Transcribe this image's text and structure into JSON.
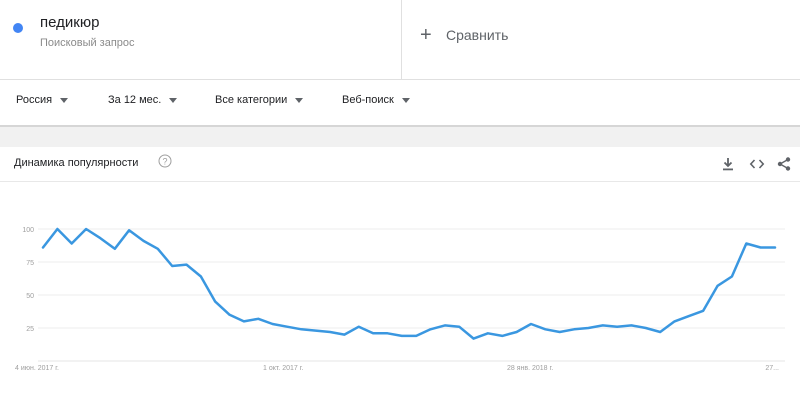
{
  "term": {
    "name": "педикюр",
    "subtitle": "Поисковый запрос",
    "color": "#4285f4"
  },
  "compare": {
    "label": "Сравнить",
    "icon": "plus-icon"
  },
  "filters": [
    {
      "label": "Россия"
    },
    {
      "label": "За 12 мес."
    },
    {
      "label": "Все категории"
    },
    {
      "label": "Веб-поиск"
    }
  ],
  "card": {
    "title": "Динамика популярности",
    "icons": [
      "help-icon",
      "download-icon",
      "embed-icon",
      "share-icon"
    ]
  },
  "chart_data": {
    "type": "line",
    "line_color": "#3a97e0",
    "ylim": [
      0,
      100
    ],
    "y_ticks": [
      "100",
      "75",
      "50",
      "25"
    ],
    "x_tick_labels": [
      {
        "label": "4 июн. 2017 г.",
        "index": 0
      },
      {
        "label": "1 окт. 2017 г.",
        "index": 17
      },
      {
        "label": "28 янв. 2018 г.",
        "index": 34
      },
      {
        "label": "27...",
        "index": 52
      }
    ],
    "grid": true,
    "series": [
      {
        "values": [
          86,
          100,
          89,
          100,
          93,
          85,
          99,
          91,
          85,
          72,
          73,
          64,
          45,
          35,
          30,
          32,
          28,
          26,
          24,
          23,
          22,
          20,
          26,
          21,
          21,
          19,
          19,
          24,
          27,
          26,
          17,
          21,
          19,
          22,
          28,
          24,
          22,
          24,
          25,
          27,
          26,
          27,
          25,
          22,
          30,
          34,
          38,
          57,
          64,
          89,
          86,
          86
        ]
      }
    ]
  }
}
